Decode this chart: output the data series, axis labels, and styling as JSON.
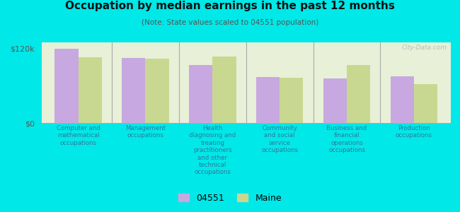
{
  "title": "Occupation by median earnings in the past 12 months",
  "subtitle": "(Note: State values scaled to 04551 population)",
  "categories": [
    "Computer and\nmathematical\noccupations",
    "Management\noccupations",
    "Health\ndiagnosing and\ntreating\npractitioners\nand other\ntechnical\noccupations",
    "Community\nand social\nservice\noccupations",
    "Business and\nfinancial\noperations\noccupations",
    "Production\noccupations"
  ],
  "values_04551": [
    120000,
    105000,
    93000,
    74000,
    72000,
    75000
  ],
  "values_maine": [
    106000,
    104000,
    107000,
    73000,
    93000,
    63000
  ],
  "color_04551": "#c8a8e0",
  "color_maine": "#c8d890",
  "background_color": "#00e8e8",
  "plot_bg_color": "#e8f0d8",
  "ylabel_top": "$120k",
  "ylabel_bottom": "$0",
  "ylim": [
    0,
    130000
  ],
  "legend_04551": "04551",
  "legend_maine": "Maine",
  "watermark": "City-Data.com"
}
